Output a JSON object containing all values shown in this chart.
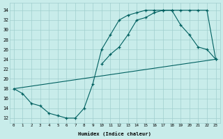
{
  "line1_x": [
    0,
    1,
    2,
    3,
    4,
    5,
    6,
    7,
    8,
    9,
    10,
    11,
    12,
    13,
    14,
    15,
    16,
    17,
    18,
    19,
    20,
    21,
    22,
    23
  ],
  "line1_y": [
    18,
    17,
    15,
    14.5,
    13,
    12.5,
    12,
    12,
    14,
    19,
    26,
    29,
    32,
    33,
    33.5,
    34,
    34,
    34,
    34,
    34,
    34,
    34,
    34,
    24
  ],
  "line2_x": [
    0,
    23
  ],
  "line2_y": [
    18,
    24
  ],
  "line3_x": [
    10,
    11,
    12,
    13,
    14,
    15,
    16,
    17,
    18,
    19,
    20,
    21,
    22,
    23
  ],
  "line3_y": [
    23,
    25,
    26.5,
    29,
    32,
    32.5,
    33.5,
    34,
    34,
    31,
    29,
    26.5,
    26,
    24
  ],
  "color": "#006060",
  "bg_color": "#c8ecea",
  "grid_color": "#a0cece",
  "xlabel": "Humidex (Indice chaleur)",
  "xlim": [
    -0.5,
    23.5
  ],
  "ylim": [
    11,
    35.5
  ],
  "xticks": [
    0,
    1,
    2,
    3,
    4,
    5,
    6,
    7,
    8,
    9,
    10,
    11,
    12,
    13,
    14,
    15,
    16,
    17,
    18,
    19,
    20,
    21,
    22,
    23
  ],
  "yticks": [
    12,
    14,
    16,
    18,
    20,
    22,
    24,
    26,
    28,
    30,
    32,
    34
  ],
  "marker": "+",
  "markersize": 3.5,
  "linewidth": 0.8
}
